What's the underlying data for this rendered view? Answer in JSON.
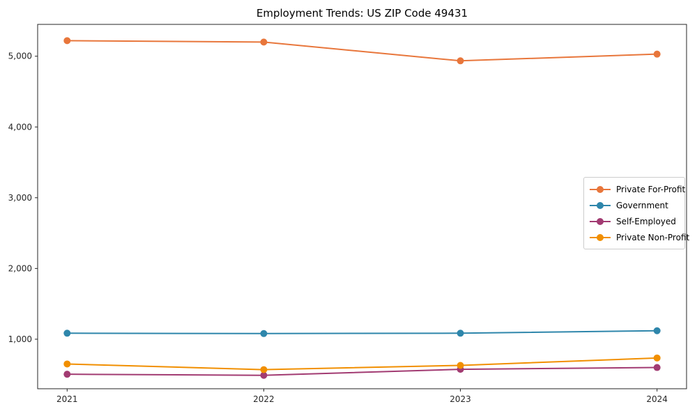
{
  "chart_data": {
    "type": "line",
    "title": "Employment Trends: US ZIP Code 49431",
    "x": [
      2021,
      2022,
      2023,
      2024
    ],
    "x_tick_labels": [
      "2021",
      "2022",
      "2023",
      "2024"
    ],
    "y_ticks": [
      1000,
      2000,
      3000,
      4000,
      5000
    ],
    "y_tick_labels": [
      "1,000",
      "2,000",
      "3,000",
      "4,000",
      "5,000"
    ],
    "series": [
      {
        "name": "Private For-Profit",
        "color": "#E8763B",
        "values": [
          5220,
          5200,
          4935,
          5030
        ]
      },
      {
        "name": "Government",
        "color": "#2E86AB",
        "values": [
          1085,
          1080,
          1085,
          1120
        ]
      },
      {
        "name": "Self-Employed",
        "color": "#A23B72",
        "values": [
          505,
          490,
          575,
          600
        ]
      },
      {
        "name": "Private Non-Profit",
        "color": "#F18F01",
        "values": [
          650,
          570,
          630,
          735
        ]
      }
    ],
    "xlim": [
      2020.85,
      2024.15
    ],
    "ylim": [
      300,
      5450
    ],
    "grid": false,
    "legend_position": "center right",
    "marker": "o",
    "axis_color": "#262626"
  }
}
